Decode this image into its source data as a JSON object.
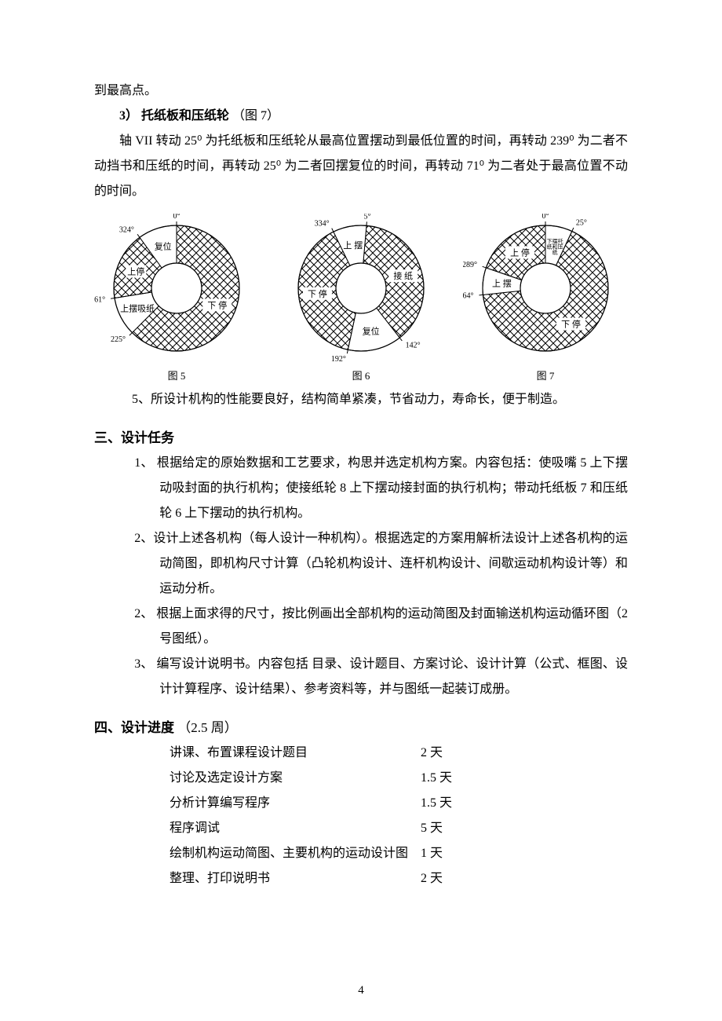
{
  "page_number": "4",
  "intro_fragment": "到最高点。",
  "sub3": {
    "heading_num": "3）",
    "heading_text": "托纸板和压纸轮",
    "heading_ref": "（图 7）",
    "body": "轴 VII 转动 25⁰ 为托纸板和压纸轮从最高位置摆动到最低位置的时间，再转动 239⁰ 为二者不动挡书和压纸的时间，再转动 25⁰ 为二者回摆复位的时间，再转动 71⁰ 为二者处于最高位置不动的时间。"
  },
  "point5": "5、所设计机构的性能要良好，结构简单紧凑，节省动力，寿命长，便于制造。",
  "section3": {
    "heading": "三、设计任务",
    "items": [
      "1、 根据给定的原始数据和工艺要求，构思并选定机构方案。内容包括：使吸嘴 5 上下摆动吸封面的执行机构；使接纸轮 8 上下摆动接封面的执行机构；带动托纸板 7 和压纸轮 6 上下摆动的执行机构。",
      "2、设计上述各机构（每人设计一种机构）。根据选定的方案用解析法设计上述各机构的运动简图，即机构尺寸计算（凸轮机构设计、连杆机构设计、间歇运动机构设计等）和运动分析。",
      "2、 根据上面求得的尺寸，按比例画出全部机构的运动简图及封面输送机构运动循环图（2 号图纸）。",
      "3、 编写设计说明书。内容包括 目录、设计题目、方案讨论、设计计算（公式、框图、设计计算程序、设计结果）、参考资料等，并与图纸一起装订成册。"
    ]
  },
  "section4": {
    "heading_main": "四、设计进度",
    "heading_paren": "（2.5 周）",
    "rows": [
      {
        "task": "讲课、布置课程设计题目",
        "days": "2 天"
      },
      {
        "task": "讨论及选定设计方案",
        "days": "1.5 天"
      },
      {
        "task": "分析计算编写程序",
        "days": "1.5 天"
      },
      {
        "task": "程序调试",
        "days": "5 天"
      },
      {
        "task": "绘制机构运动简图、主要机构的运动设计图",
        "days": "1 天"
      },
      {
        "task": "整理、打印说明书",
        "days": "2 天"
      }
    ]
  },
  "figures": {
    "type": "three-cam-cycle-diagrams",
    "ring": {
      "outer_r": 80,
      "inner_r": 32,
      "stroke": "#000000",
      "hatch_stroke": "#000000",
      "background": "#ffffff",
      "angle_fontsize": 10,
      "sector_fontsize": 11
    },
    "fig5": {
      "caption": "图 5",
      "angle_labels": [
        {
          "deg": 0,
          "text": "0°"
        },
        {
          "deg": 324,
          "text": "324°"
        },
        {
          "deg": 261,
          "text": "261°"
        },
        {
          "deg": 225,
          "text": "225°"
        }
      ],
      "sectors": [
        {
          "from": 0,
          "to": 225,
          "label": "下 停",
          "hatched": true
        },
        {
          "from": 225,
          "to": 261,
          "label": "上摆吸纸",
          "hatched": false
        },
        {
          "from": 261,
          "to": 324,
          "label": "上停",
          "hatched": true
        },
        {
          "from": 324,
          "to": 360,
          "label": "复位",
          "hatched": false
        }
      ]
    },
    "fig6": {
      "caption": "图 6",
      "angle_labels": [
        {
          "deg": 5,
          "text": "5°"
        },
        {
          "deg": 334,
          "text": "334°"
        },
        {
          "deg": 192,
          "text": "192°"
        },
        {
          "deg": 142,
          "text": "142°"
        }
      ],
      "sectors": [
        {
          "from": 5,
          "to": 142,
          "label": "接 纸",
          "hatched": true
        },
        {
          "from": 142,
          "to": 192,
          "label": "复位",
          "hatched": false
        },
        {
          "from": 192,
          "to": 334,
          "label": "下 停",
          "hatched": true
        },
        {
          "from": 334,
          "to": 365,
          "label": "上 摆",
          "hatched": false
        }
      ]
    },
    "fig7": {
      "caption": "图 7",
      "angle_labels": [
        {
          "deg": 0,
          "text": "0°"
        },
        {
          "deg": 25,
          "text": "25°"
        },
        {
          "deg": 289,
          "text": "289°"
        },
        {
          "deg": 264,
          "text": "264°"
        }
      ],
      "sectors": [
        {
          "from": 0,
          "to": 25,
          "label": "下摆托纸和压纸",
          "hatched": false,
          "small": true
        },
        {
          "from": 25,
          "to": 264,
          "label": "下 停",
          "hatched": true
        },
        {
          "from": 264,
          "to": 289,
          "label": "上 摆",
          "hatched": false
        },
        {
          "from": 289,
          "to": 360,
          "label": "上 停",
          "hatched": true
        }
      ]
    }
  }
}
